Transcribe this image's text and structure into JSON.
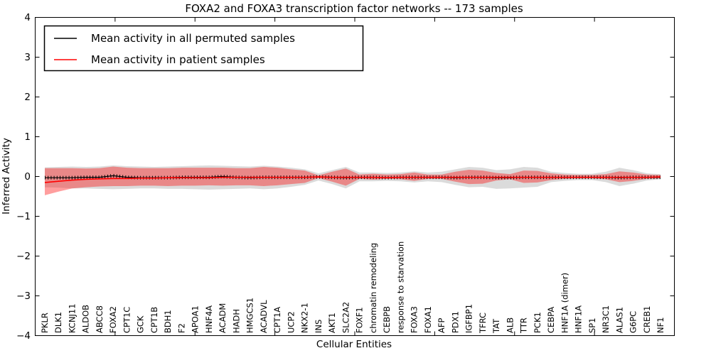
{
  "page": {
    "background": "#ffffff"
  },
  "chart_data": {
    "type": "line",
    "title": "FOXA2 and FOXA3 transcription factor networks -- 173 samples",
    "xlabel": "Cellular Entities",
    "ylabel": "Inferred Activity",
    "ylim": [
      -4,
      4
    ],
    "xcat_labels_inside_axes": true,
    "grid": false,
    "legend_position": "upper-left",
    "yticks": [
      "4",
      "3",
      "2",
      "1",
      "0",
      "−1",
      "−2",
      "−3",
      "−4"
    ],
    "ytick_values": [
      4,
      3,
      2,
      1,
      0,
      -1,
      -2,
      -3,
      -4
    ],
    "legend": [
      "Mean activity in all permuted samples",
      "Mean activity in patient samples"
    ],
    "legend_colors": [
      "#000000",
      "#ff0000"
    ],
    "categories": [
      "PKLR",
      "DLK1",
      "KCNJ11",
      "ALDOB",
      "ABCC8",
      "FOXA2",
      "CPT1C",
      "GCK",
      "CPT1B",
      "BDH1",
      "F2",
      "APOA1",
      "HNF4A",
      "ACADM",
      "HADH",
      "HMGCS1",
      "ACADVL",
      "CPT1A",
      "UCP2",
      "NKX2-1",
      "INS",
      "AKT1",
      "SLC2A2",
      "FOXF1",
      "chromatin remodeling",
      "CEBPB",
      "response to starvation",
      "FOXA3",
      "FOXA1",
      "AFP",
      "PDX1",
      "IGFBP1",
      "TFRC",
      "TAT",
      "ALB",
      "TTR",
      "PCK1",
      "CEBPA",
      "HNF1A (dimer)",
      "HNF1A",
      "SP1",
      "NR3C1",
      "ALAS1",
      "G6PC",
      "CREB1",
      "NF1"
    ],
    "series": [
      {
        "name": "Mean activity in all permuted samples",
        "color": "#000000",
        "values": [
          -0.03,
          -0.03,
          -0.03,
          -0.02,
          -0.02,
          0.02,
          -0.02,
          -0.03,
          -0.03,
          -0.03,
          -0.02,
          -0.02,
          -0.02,
          0.0,
          -0.02,
          -0.03,
          -0.02,
          -0.02,
          -0.02,
          -0.02,
          -0.01,
          -0.02,
          -0.03,
          -0.02,
          -0.02,
          -0.03,
          -0.02,
          -0.02,
          -0.02,
          -0.02,
          -0.03,
          -0.02,
          -0.02,
          -0.03,
          -0.03,
          -0.02,
          -0.02,
          -0.02,
          -0.02,
          -0.02,
          -0.02,
          -0.02,
          -0.03,
          -0.02,
          -0.02,
          -0.02
        ]
      },
      {
        "name": "Mean activity in patient samples",
        "color": "#ff0000",
        "values": [
          -0.15,
          -0.12,
          -0.09,
          -0.07,
          -0.06,
          -0.05,
          -0.05,
          -0.04,
          -0.04,
          -0.03,
          -0.03,
          -0.03,
          -0.03,
          -0.02,
          -0.02,
          -0.02,
          -0.02,
          -0.02,
          -0.02,
          -0.02,
          -0.01,
          -0.02,
          -0.02,
          -0.02,
          -0.02,
          -0.03,
          -0.02,
          -0.02,
          -0.02,
          -0.02,
          -0.02,
          -0.02,
          -0.02,
          -0.02,
          -0.02,
          -0.02,
          -0.02,
          -0.02,
          -0.02,
          -0.02,
          -0.02,
          -0.02,
          -0.02,
          -0.02,
          -0.02,
          -0.01
        ]
      }
    ],
    "bands": [
      {
        "name": "permuted-samples-range",
        "color": "rgba(0,0,0,0.14)",
        "upper": [
          0.23,
          0.24,
          0.25,
          0.24,
          0.25,
          0.28,
          0.26,
          0.25,
          0.24,
          0.25,
          0.26,
          0.27,
          0.28,
          0.27,
          0.26,
          0.25,
          0.27,
          0.25,
          0.22,
          0.18,
          0.08,
          0.16,
          0.24,
          0.1,
          0.1,
          0.09,
          0.1,
          0.13,
          0.1,
          0.12,
          0.18,
          0.24,
          0.22,
          0.16,
          0.18,
          0.24,
          0.22,
          0.12,
          0.09,
          0.07,
          0.07,
          0.12,
          0.22,
          0.16,
          0.08,
          0.06
        ],
        "lower": [
          -0.27,
          -0.28,
          -0.3,
          -0.3,
          -0.31,
          -0.32,
          -0.31,
          -0.3,
          -0.3,
          -0.31,
          -0.31,
          -0.32,
          -0.33,
          -0.32,
          -0.31,
          -0.3,
          -0.32,
          -0.3,
          -0.26,
          -0.21,
          -0.1,
          -0.19,
          -0.3,
          -0.12,
          -0.12,
          -0.11,
          -0.12,
          -0.15,
          -0.12,
          -0.14,
          -0.21,
          -0.27,
          -0.26,
          -0.31,
          -0.3,
          -0.28,
          -0.26,
          -0.14,
          -0.11,
          -0.09,
          -0.09,
          -0.14,
          -0.24,
          -0.18,
          -0.1,
          -0.07
        ]
      },
      {
        "name": "patient-samples-range",
        "color": "rgba(255,0,0,0.38)",
        "upper": [
          0.21,
          0.21,
          0.21,
          0.2,
          0.21,
          0.25,
          0.22,
          0.21,
          0.21,
          0.21,
          0.22,
          0.22,
          0.22,
          0.22,
          0.21,
          0.21,
          0.24,
          0.22,
          0.18,
          0.15,
          0.03,
          0.12,
          0.2,
          0.05,
          0.07,
          0.05,
          0.06,
          0.1,
          0.05,
          0.05,
          0.12,
          0.17,
          0.15,
          0.09,
          0.06,
          0.15,
          0.14,
          0.08,
          0.05,
          0.04,
          0.04,
          0.06,
          0.13,
          0.1,
          0.05,
          0.04
        ],
        "lower": [
          -0.47,
          -0.38,
          -0.3,
          -0.27,
          -0.25,
          -0.24,
          -0.24,
          -0.23,
          -0.23,
          -0.24,
          -0.23,
          -0.23,
          -0.22,
          -0.23,
          -0.22,
          -0.22,
          -0.24,
          -0.22,
          -0.19,
          -0.16,
          -0.04,
          -0.13,
          -0.23,
          -0.06,
          -0.08,
          -0.06,
          -0.07,
          -0.11,
          -0.06,
          -0.06,
          -0.13,
          -0.19,
          -0.18,
          -0.1,
          -0.07,
          -0.16,
          -0.15,
          -0.09,
          -0.06,
          -0.05,
          -0.05,
          -0.07,
          -0.14,
          -0.11,
          -0.06,
          -0.05
        ]
      }
    ]
  }
}
